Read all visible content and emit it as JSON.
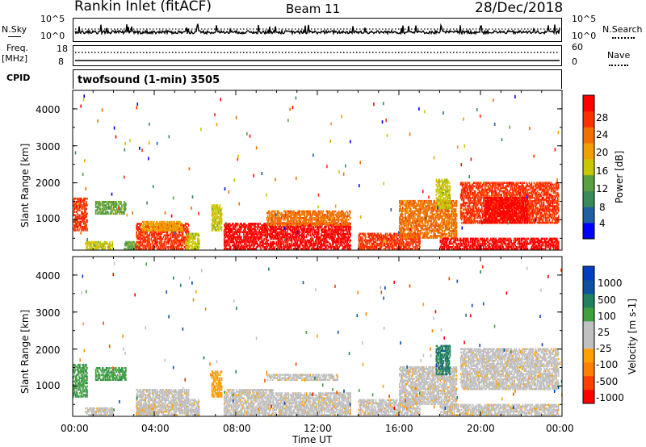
{
  "header": {
    "station": "Rankin Inlet (fitACF)",
    "beam": "Beam 11",
    "date": "28/Dec/2018"
  },
  "status_panels": {
    "nsky_label": "N.Sky",
    "nsky_ticks": [
      "10^5",
      "10^0"
    ],
    "nsearch_label": "N.Search",
    "nsearch_ticks": [
      "10^5",
      "10^0"
    ],
    "freq_label": "Freq.",
    "freq_unit": "[MHz]",
    "freq_ticks": [
      "18",
      "8"
    ],
    "nave_label": "Nave",
    "nave_ticks": [
      "60",
      "0"
    ],
    "cpid_label": "CPID",
    "cpid_text": "twofsound (1-min) 3505"
  },
  "colors": {
    "power_scale": [
      "#0000ff",
      "#2060a0",
      "#3a8a5a",
      "#5aa040",
      "#c8c800",
      "#f0a000",
      "#f07000",
      "#ff3000",
      "#ff0000"
    ],
    "velocity_scale": [
      "#ff0000",
      "#ff4000",
      "#ff8000",
      "#ffa000",
      "#c0c0c0",
      "#c0c0c0",
      "#40a040",
      "#208060",
      "#1050a0",
      "#0040c0"
    ]
  },
  "chart_data": [
    {
      "type": "heatmap",
      "title": "",
      "xlabel": "",
      "ylabel": "Slant Range [km]",
      "xlim": [
        0,
        24
      ],
      "ylim": [
        180,
        4500
      ],
      "x_ticks": [
        "00:00",
        "04:00",
        "08:00",
        "12:00",
        "16:00",
        "20:00",
        "00:00"
      ],
      "y_ticks": [
        1000,
        2000,
        3000,
        4000
      ],
      "colorbar_label": "Power [dB]",
      "colorbar_ticks": [
        "28",
        "24",
        "20",
        "16",
        "12",
        "8",
        "4"
      ],
      "colorbar_range": [
        0,
        30
      ],
      "regions": [
        {
          "t0": 0.0,
          "t1": 0.7,
          "r0": 700,
          "r1": 1600,
          "level": 24
        },
        {
          "t0": 0.6,
          "t1": 2.0,
          "r0": 200,
          "r1": 420,
          "level": 14
        },
        {
          "t0": 1.1,
          "t1": 2.6,
          "r0": 1150,
          "r1": 1500,
          "level": 12
        },
        {
          "t0": 2.5,
          "t1": 3.3,
          "r0": 200,
          "r1": 420,
          "level": 12
        },
        {
          "t0": 3.1,
          "t1": 5.7,
          "r0": 200,
          "r1": 900,
          "level": 26
        },
        {
          "t0": 3.4,
          "t1": 5.4,
          "r0": 700,
          "r1": 950,
          "level": 18
        },
        {
          "t0": 5.5,
          "t1": 6.2,
          "r0": 200,
          "r1": 650,
          "level": 14
        },
        {
          "t0": 6.8,
          "t1": 7.3,
          "r0": 700,
          "r1": 1400,
          "level": 16
        },
        {
          "t0": 7.4,
          "t1": 13.6,
          "r0": 200,
          "r1": 900,
          "level": 27
        },
        {
          "t0": 9.5,
          "t1": 13.6,
          "r0": 850,
          "r1": 1250,
          "level": 20
        },
        {
          "t0": 14.0,
          "t1": 17.0,
          "r0": 200,
          "r1": 650,
          "level": 25
        },
        {
          "t0": 16.0,
          "t1": 18.8,
          "r0": 500,
          "r1": 1500,
          "level": 20
        },
        {
          "t0": 17.8,
          "t1": 18.5,
          "r0": 1300,
          "r1": 2100,
          "level": 16
        },
        {
          "t0": 18.0,
          "t1": 23.8,
          "r0": 200,
          "r1": 500,
          "level": 27
        },
        {
          "t0": 19.0,
          "t1": 23.8,
          "r0": 900,
          "r1": 2000,
          "level": 24
        },
        {
          "t0": 20.2,
          "t1": 22.3,
          "r0": 900,
          "r1": 1600,
          "level": 29
        }
      ]
    },
    {
      "type": "heatmap",
      "title": "",
      "xlabel": "Time UT",
      "ylabel": "Slant Range [km]",
      "xlim": [
        0,
        24
      ],
      "ylim": [
        180,
        4500
      ],
      "x_ticks": [
        "00:00",
        "04:00",
        "08:00",
        "12:00",
        "16:00",
        "20:00",
        "00:00"
      ],
      "y_ticks": [
        1000,
        2000,
        3000,
        4000
      ],
      "colorbar_label": "Velocity [m s-1]",
      "colorbar_ticks": [
        "1000",
        "500",
        "100",
        "25",
        "-25",
        "-100",
        "-500",
        "-1000"
      ],
      "colorbar_range": [
        -1200,
        1200
      ],
      "regions": [
        {
          "t0": 0.0,
          "t1": 0.7,
          "r0": 700,
          "r1": 1600,
          "level": 300
        },
        {
          "t0": 0.6,
          "t1": 2.0,
          "r0": 200,
          "r1": 420,
          "level": 80
        },
        {
          "t0": 1.1,
          "t1": 2.6,
          "r0": 1150,
          "r1": 1500,
          "level": 400
        },
        {
          "t0": 3.1,
          "t1": 5.7,
          "r0": 200,
          "r1": 900,
          "level": 0
        },
        {
          "t0": 3.1,
          "t1": 4.0,
          "r0": 200,
          "r1": 500,
          "level": 80
        },
        {
          "t0": 5.5,
          "t1": 6.2,
          "r0": 200,
          "r1": 650,
          "level": 60
        },
        {
          "t0": 6.8,
          "t1": 7.3,
          "r0": 700,
          "r1": 1400,
          "level": -300
        },
        {
          "t0": 7.4,
          "t1": 9.8,
          "r0": 200,
          "r1": 900,
          "level": 70
        },
        {
          "t0": 9.8,
          "t1": 13.6,
          "r0": 200,
          "r1": 800,
          "level": -150
        },
        {
          "t0": 9.5,
          "t1": 13.0,
          "r0": 1150,
          "r1": 1300,
          "level": 0
        },
        {
          "t0": 14.0,
          "t1": 17.0,
          "r0": 200,
          "r1": 650,
          "level": -120
        },
        {
          "t0": 16.0,
          "t1": 18.8,
          "r0": 500,
          "r1": 1500,
          "level": -200
        },
        {
          "t0": 17.8,
          "t1": 18.5,
          "r0": 1300,
          "r1": 2100,
          "level": 500
        },
        {
          "t0": 18.0,
          "t1": 23.8,
          "r0": 200,
          "r1": 500,
          "level": 60
        },
        {
          "t0": 19.0,
          "t1": 23.8,
          "r0": 900,
          "r1": 2000,
          "level": -150
        }
      ]
    }
  ]
}
